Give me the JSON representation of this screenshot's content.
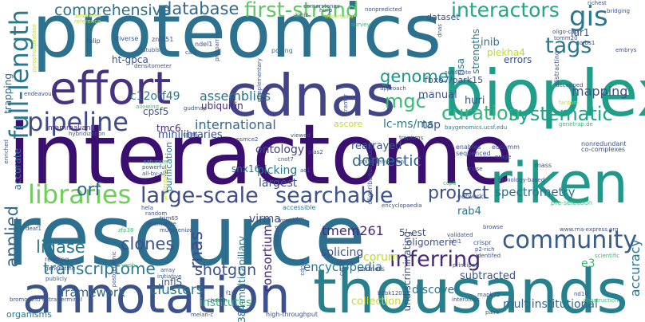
{
  "words": [
    {
      "text": "interactome",
      "color": "#3b0f70"
    },
    {
      "text": "proteomics",
      "color": "#2c728e"
    },
    {
      "text": "resource",
      "color": "#2d6f8e"
    },
    {
      "text": "thousands",
      "color": "#27808e"
    },
    {
      "text": "annotation",
      "color": "#3b528b"
    },
    {
      "text": "cdnas",
      "color": "#414487"
    },
    {
      "text": "bioplex",
      "color": "#1f9e89"
    },
    {
      "text": "riken",
      "color": "#1f998a"
    },
    {
      "text": "effort",
      "color": "#46327e"
    },
    {
      "text": "libraries",
      "color": "#6ece58"
    },
    {
      "text": "large-scale",
      "color": "#3e4a89"
    },
    {
      "text": "searchable",
      "color": "#3b528b"
    },
    {
      "text": "pipeline",
      "color": "#3e4c8a"
    },
    {
      "text": "community",
      "color": "#365c8d"
    },
    {
      "text": "inferring",
      "color": "#482878"
    },
    {
      "text": "full-length",
      "color": "#2a788e"
    },
    {
      "text": "gis",
      "color": "#2a788e"
    },
    {
      "text": "tags",
      "color": "#2a788e"
    },
    {
      "text": "first-strand",
      "color": "#5ec962"
    },
    {
      "text": "interactors",
      "color": "#22a884"
    },
    {
      "text": "database",
      "color": "#31688e"
    },
    {
      "text": "comprehensive",
      "color": "#2c728e"
    },
    {
      "text": "curation",
      "color": "#35b779"
    },
    {
      "text": "systematic",
      "color": "#20a386"
    },
    {
      "text": "mgc",
      "color": "#3aba76"
    },
    {
      "text": "genome",
      "color": "#21918c"
    },
    {
      "text": "project",
      "color": "#3b528b"
    },
    {
      "text": "transcriptome",
      "color": "#2a788e"
    },
    {
      "text": "shotgun",
      "color": "#3b528b"
    },
    {
      "text": "encyclopedia",
      "color": "#2a788e"
    },
    {
      "text": "orf",
      "color": "#31688e"
    },
    {
      "text": "clones",
      "color": "#3b528b"
    },
    {
      "text": "ligase",
      "color": "#2a788e"
    },
    {
      "text": "applied",
      "color": "#31688e"
    },
    {
      "text": "assemblies",
      "color": "#2c728e"
    },
    {
      "text": "international",
      "color": "#31688e"
    },
    {
      "text": "mapping",
      "color": "#3b528b"
    },
    {
      "text": "spectrometry",
      "color": "#2c728e"
    },
    {
      "text": "consortium",
      "color": "#482878"
    },
    {
      "text": "rnas",
      "color": "#3e4a89"
    },
    {
      "text": "framework",
      "color": "#31688e"
    },
    {
      "text": "clusters",
      "color": "#2a788e"
    },
    {
      "text": "institutes",
      "color": "#3aba76"
    },
    {
      "text": "collection",
      "color": "#c2df23"
    },
    {
      "text": "discover",
      "color": "#2a788e"
    },
    {
      "text": "multiinstitutional",
      "color": "#31688e"
    },
    {
      "text": "accuracy",
      "color": "#2c728e"
    },
    {
      "text": "splicing",
      "color": "#3b528b"
    },
    {
      "text": "tmem261",
      "color": "#482878"
    },
    {
      "text": "corum",
      "color": "#bddf26"
    },
    {
      "text": "domestic",
      "color": "#31688e"
    },
    {
      "text": "rearrayed",
      "color": "#3b528b"
    },
    {
      "text": "ontology",
      "color": "#414487"
    },
    {
      "text": "picking",
      "color": "#2a788e"
    },
    {
      "text": "largest",
      "color": "#3b528b"
    },
    {
      "text": "snx16",
      "color": "#2c728e"
    },
    {
      "text": "virma",
      "color": "#3b528b"
    },
    {
      "text": "c12orf49",
      "color": "#2a788e"
    },
    {
      "text": "ubiquitin",
      "color": "#482878"
    },
    {
      "text": "ht-gpca",
      "color": "#3b528b"
    },
    {
      "text": "tmc6",
      "color": "#472d7b"
    },
    {
      "text": "cpsf5",
      "color": "#3b528b"
    },
    {
      "text": "lc-ms/ms",
      "color": "#2a788e"
    },
    {
      "text": "tap",
      "color": "#3b528b"
    },
    {
      "text": "manual",
      "color": "#3b528b"
    },
    {
      "text": "huri",
      "color": "#3b528b"
    },
    {
      "text": "risa",
      "color": "#2c728e"
    },
    {
      "text": "inib",
      "color": "#2c728e"
    },
    {
      "text": "plekha4",
      "color": "#bddf26"
    },
    {
      "text": "errors",
      "color": "#3b528b"
    },
    {
      "text": "lur1",
      "color": "#3b528b"
    },
    {
      "text": "dataset",
      "color": "#3b528b"
    },
    {
      "text": "fbxo7/park15",
      "color": "#3b528b"
    },
    {
      "text": "strengths",
      "color": "#2a788e"
    },
    {
      "text": "384-multicapillary",
      "color": "#2c728e"
    },
    {
      "text": "e3",
      "color": "#3aba76"
    },
    {
      "text": "subtracted",
      "color": "#3b528b"
    },
    {
      "text": "undiscriminating",
      "color": "#3b528b"
    },
    {
      "text": "rab4",
      "color": "#2c728e"
    },
    {
      "text": "inflS",
      "color": "#3b528b"
    },
    {
      "text": "minilibraries",
      "color": "#3b528b"
    },
    {
      "text": "mammalian",
      "color": "#472d7b"
    },
    {
      "text": "trapping",
      "color": "#31688e"
    },
    {
      "text": "accurate",
      "color": "#2a788e"
    },
    {
      "text": "purification",
      "color": "#2a788e"
    },
    {
      "text": "5'-est",
      "color": "#3b528b"
    },
    {
      "text": "oligomeric",
      "color": "#3b528b"
    },
    {
      "text": "endeavour",
      "color": "#3b528b"
    },
    {
      "text": "znf451",
      "color": "#3b528b"
    },
    {
      "text": "diverse",
      "color": "#3b528b"
    },
    {
      "text": "tulip",
      "color": "#3b528b"
    },
    {
      "text": "ndel1",
      "color": "#3b528b"
    },
    {
      "text": "caf1",
      "color": "#3b528b"
    },
    {
      "text": "stubls",
      "color": "#3b528b"
    },
    {
      "text": "polling",
      "color": "#2c728e"
    },
    {
      "text": "nonpredicted",
      "color": "#3b528b"
    },
    {
      "text": "richest",
      "color": "#3b528b"
    },
    {
      "text": "bridging",
      "color": "#3b528b"
    },
    {
      "text": "kiniz",
      "color": "#3b528b"
    },
    {
      "text": "cornerstones",
      "color": "#3b528b"
    },
    {
      "text": "assertions",
      "color": "#bddf26"
    },
    {
      "text": "hurp",
      "color": "#3b528b"
    },
    {
      "text": "oligo-cap",
      "color": "#3b528b"
    },
    {
      "text": "sorbs1",
      "color": "#3b528b"
    },
    {
      "text": "embrys",
      "color": "#3b528b"
    },
    {
      "text": "survey",
      "color": "#3aba76"
    },
    {
      "text": "substrate",
      "color": "#3b528b"
    },
    {
      "text": "distracting",
      "color": "#3b528b"
    },
    {
      "text": "decapped",
      "color": "#3b528b"
    },
    {
      "text": "approach",
      "color": "#3b528b"
    },
    {
      "text": "baygenomics.ucsf.edu",
      "color": "#2a788e"
    },
    {
      "text": "genetrap.de",
      "color": "#3aba76"
    },
    {
      "text": "fantom",
      "color": "#bddf26"
    },
    {
      "text": "eucomm",
      "color": "#3b528b"
    },
    {
      "text": "nrage",
      "color": "#3b528b"
    },
    {
      "text": "nonredundant",
      "color": "#3b528b"
    },
    {
      "text": "co-complexes",
      "color": "#3b528b"
    },
    {
      "text": "homology-based",
      "color": "#3b528b"
    },
    {
      "text": "networks",
      "color": "#3b528b"
    },
    {
      "text": "enables",
      "color": "#3b528b"
    },
    {
      "text": "sequenced",
      "color": "#3b528b"
    },
    {
      "text": "mass",
      "color": "#3b528b"
    },
    {
      "text": "crispr",
      "color": "#3b528b"
    },
    {
      "text": "p2-rich",
      "color": "#3b528b"
    },
    {
      "text": "identifed",
      "color": "#3b528b"
    },
    {
      "text": "browse",
      "color": "#3b528b"
    },
    {
      "text": "validated",
      "color": "#3b528b"
    },
    {
      "text": "partners",
      "color": "#3b528b"
    },
    {
      "text": "psms",
      "color": "#3b528b"
    },
    {
      "text": "mrnas",
      "color": "#3b528b"
    },
    {
      "text": "cdnas",
      "color": "#3b528b"
    },
    {
      "text": "created",
      "color": "#3b528b"
    },
    {
      "text": "accessible",
      "color": "#2a788e"
    },
    {
      "text": "encyclopaedia",
      "color": "#3b528b"
    },
    {
      "text": "array",
      "color": "#3b528b"
    },
    {
      "text": "initiative",
      "color": "#3b528b"
    },
    {
      "text": "chosen",
      "color": "#3b528b"
    },
    {
      "text": "melan-c",
      "color": "#3b528b"
    },
    {
      "text": "high-throughput",
      "color": "#3b528b"
    },
    {
      "text": "organisms",
      "color": "#2a788e"
    },
    {
      "text": "bromo-and-extra-terminal",
      "color": "#3b528b"
    },
    {
      "text": "reading",
      "color": "#3b528b"
    },
    {
      "text": "publicly",
      "color": "#3b528b"
    },
    {
      "text": "generating",
      "color": "#3b528b"
    },
    {
      "text": "postgenomic",
      "color": "#3b528b"
    },
    {
      "text": "vapb",
      "color": "#3aba76"
    },
    {
      "text": "alternative",
      "color": "#3b528b"
    },
    {
      "text": "mutagenize",
      "color": "#3b528b"
    },
    {
      "text": "hela",
      "color": "#3b528b"
    },
    {
      "text": "random",
      "color": "#3b528b"
    },
    {
      "text": "trim65",
      "color": "#3b528b"
    },
    {
      "text": "saturate",
      "color": "#3aba76"
    },
    {
      "text": "powerful",
      "color": "#3b528b"
    },
    {
      "text": "all-by-all",
      "color": "#3b528b"
    },
    {
      "text": "hybridization",
      "color": "#3b528b"
    },
    {
      "text": "cpsf6",
      "color": "#3b528b"
    },
    {
      "text": "allowing",
      "color": "#3aba76"
    },
    {
      "text": "gudmap",
      "color": "#3b528b"
    },
    {
      "text": "cnot7",
      "color": "#3b528b"
    },
    {
      "text": "as1",
      "color": "#3b528b"
    },
    {
      "text": "plas2",
      "color": "#3b528b"
    },
    {
      "text": "viewed",
      "color": "#3b528b"
    },
    {
      "text": "tropisms",
      "color": "#3b528b"
    },
    {
      "text": "ascore",
      "color": "#bddf26"
    },
    {
      "text": "polyadenylation",
      "color": "#3b528b"
    },
    {
      "text": "ccp8",
      "color": "#3aba76"
    },
    {
      "text": "abi1",
      "color": "#3b528b"
    },
    {
      "text": "principes",
      "color": "#3b528b"
    },
    {
      "text": "cycler",
      "color": "#3b528b"
    },
    {
      "text": "b2bk120",
      "color": "#3b528b"
    },
    {
      "text": "interologs",
      "color": "#3b528b"
    },
    {
      "text": "mapk72",
      "color": "#3b528b"
    },
    {
      "text": "pairs",
      "color": "#3b528b"
    },
    {
      "text": "nd10",
      "color": "#3b528b"
    },
    {
      "text": "construction",
      "color": "#3aba76"
    },
    {
      "text": "scientific",
      "color": "#3aba76"
    },
    {
      "text": "reference",
      "color": "#bddf26"
    },
    {
      "text": "answered",
      "color": "#bddf26"
    },
    {
      "text": "enriched",
      "color": "#3b528b"
    },
    {
      "text": "densitometer",
      "color": "#3b528b"
    },
    {
      "text": "tomm20",
      "color": "#3b528b"
    },
    {
      "text": "protoarray",
      "color": "#3b528b"
    },
    {
      "text": "complementary",
      "color": "#3b528b"
    },
    {
      "text": "kramer",
      "color": "#3b528b"
    },
    {
      "text": "unidentified",
      "color": "#bddf26"
    },
    {
      "text": "deaf1",
      "color": "#3b528b"
    },
    {
      "text": "zfp38",
      "color": "#3aba76"
    },
    {
      "text": "nsmce2",
      "color": "#3b528b"
    },
    {
      "text": "f1j",
      "color": "#3b528b"
    },
    {
      "text": "pyrophosphatase",
      "color": "#bddf26"
    },
    {
      "text": "oligoribonucleotide",
      "color": "#3b528b"
    },
    {
      "text": "rnase",
      "color": "#3b528b"
    },
    {
      "text": "utm",
      "color": "#3b528b"
    },
    {
      "text": "dnas",
      "color": "#3b528b"
    },
    {
      "text": "pre-selection",
      "color": "#3aba76"
    },
    {
      "text": "www.rna-express.org",
      "color": "#3b528b"
    },
    {
      "text": "transmissible",
      "color": "#bddf26"
    }
  ]
}
